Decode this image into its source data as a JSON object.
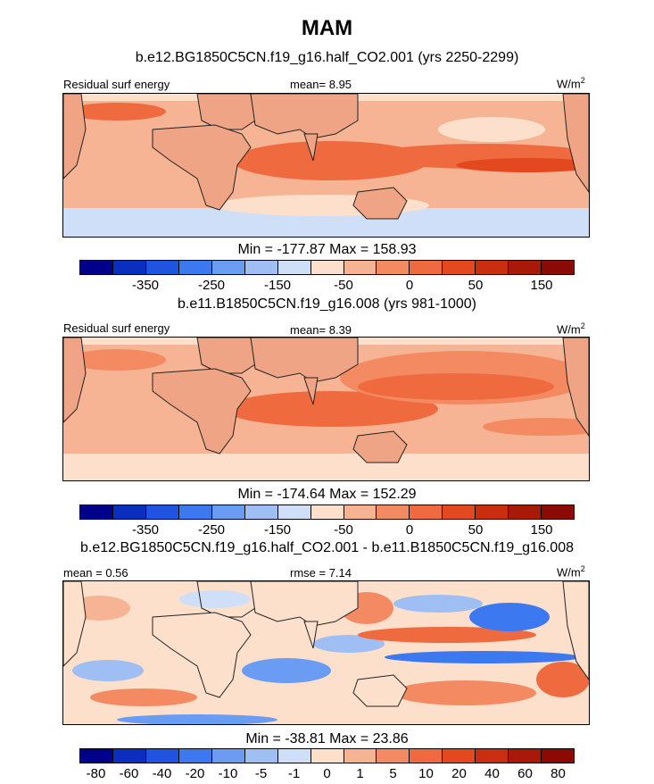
{
  "figure": {
    "title": "MAM"
  },
  "panels": [
    {
      "title": "b.e12.BG1850C5CN.f19_g16.half_CO2.001 (yrs 2250-2299)",
      "left_label": "Residual surf energy",
      "center_label": "mean=   8.95",
      "units": "W/m",
      "units_exp": "2",
      "minmax": "Min = -177.87 Max = 158.93",
      "colorbar_labels": [
        "-350",
        "-250",
        "-150",
        "-50",
        "0",
        "50",
        "150"
      ]
    },
    {
      "title": "b.e11.B1850C5CN.f19_g16.008 (yrs 981-1000)",
      "left_label": "Residual surf energy",
      "center_label": "mean=   8.39",
      "units": "W/m",
      "units_exp": "2",
      "minmax": "Min = -174.64 Max = 152.29",
      "colorbar_labels": [
        "-350",
        "-250",
        "-150",
        "-50",
        "0",
        "50",
        "150"
      ]
    },
    {
      "title": "b.e12.BG1850C5CN.f19_g16.half_CO2.001 - b.e11.B1850C5CN.f19_g16.008",
      "left_label": "mean =   0.56",
      "center_label": "rmse =   7.14",
      "units": "W/m",
      "units_exp": "2",
      "minmax": "Min = -38.81 Max = 23.86",
      "colorbar_labels": [
        "-80",
        "-60",
        "-40",
        "-20",
        "-10",
        "-5",
        "-1",
        "0",
        "1",
        "5",
        "10",
        "20",
        "40",
        "60",
        "80"
      ]
    }
  ],
  "colors": {
    "land": "#efa585",
    "coast": "#222222",
    "colorbar": [
      "#00008b",
      "#0a2fbf",
      "#1f54e0",
      "#3c79f0",
      "#6a9cf3",
      "#9ebef4",
      "#cfdff7",
      "#fce0cc",
      "#f7b495",
      "#f48a62",
      "#ef6a3f",
      "#e3481f",
      "#c92e0f",
      "#a81a07",
      "#8b0a05"
    ]
  },
  "chart_data": [
    {
      "type": "heatmap",
      "title": "b.e12.BG1850C5CN.f19_g16.half_CO2.001 (yrs 2250-2299)",
      "variable": "Residual surf energy",
      "units": "W/m2",
      "mean": 8.95,
      "min": -177.87,
      "max": 158.93,
      "colorbar_ticks": [
        -350,
        -250,
        -150,
        -50,
        0,
        50,
        150
      ]
    },
    {
      "type": "heatmap",
      "title": "b.e11.B1850C5CN.f19_g16.008 (yrs 981-1000)",
      "variable": "Residual surf energy",
      "units": "W/m2",
      "mean": 8.39,
      "min": -174.64,
      "max": 152.29,
      "colorbar_ticks": [
        -350,
        -250,
        -150,
        -50,
        0,
        50,
        150
      ]
    },
    {
      "type": "heatmap",
      "title": "b.e12.BG1850C5CN.f19_g16.half_CO2.001 - b.e11.B1850C5CN.f19_g16.008",
      "units": "W/m2",
      "mean": 0.56,
      "rmse": 7.14,
      "min": -38.81,
      "max": 23.86,
      "colorbar_ticks": [
        -80,
        -60,
        -40,
        -20,
        -10,
        -5,
        -1,
        0,
        1,
        5,
        10,
        20,
        40,
        60,
        80
      ]
    }
  ]
}
